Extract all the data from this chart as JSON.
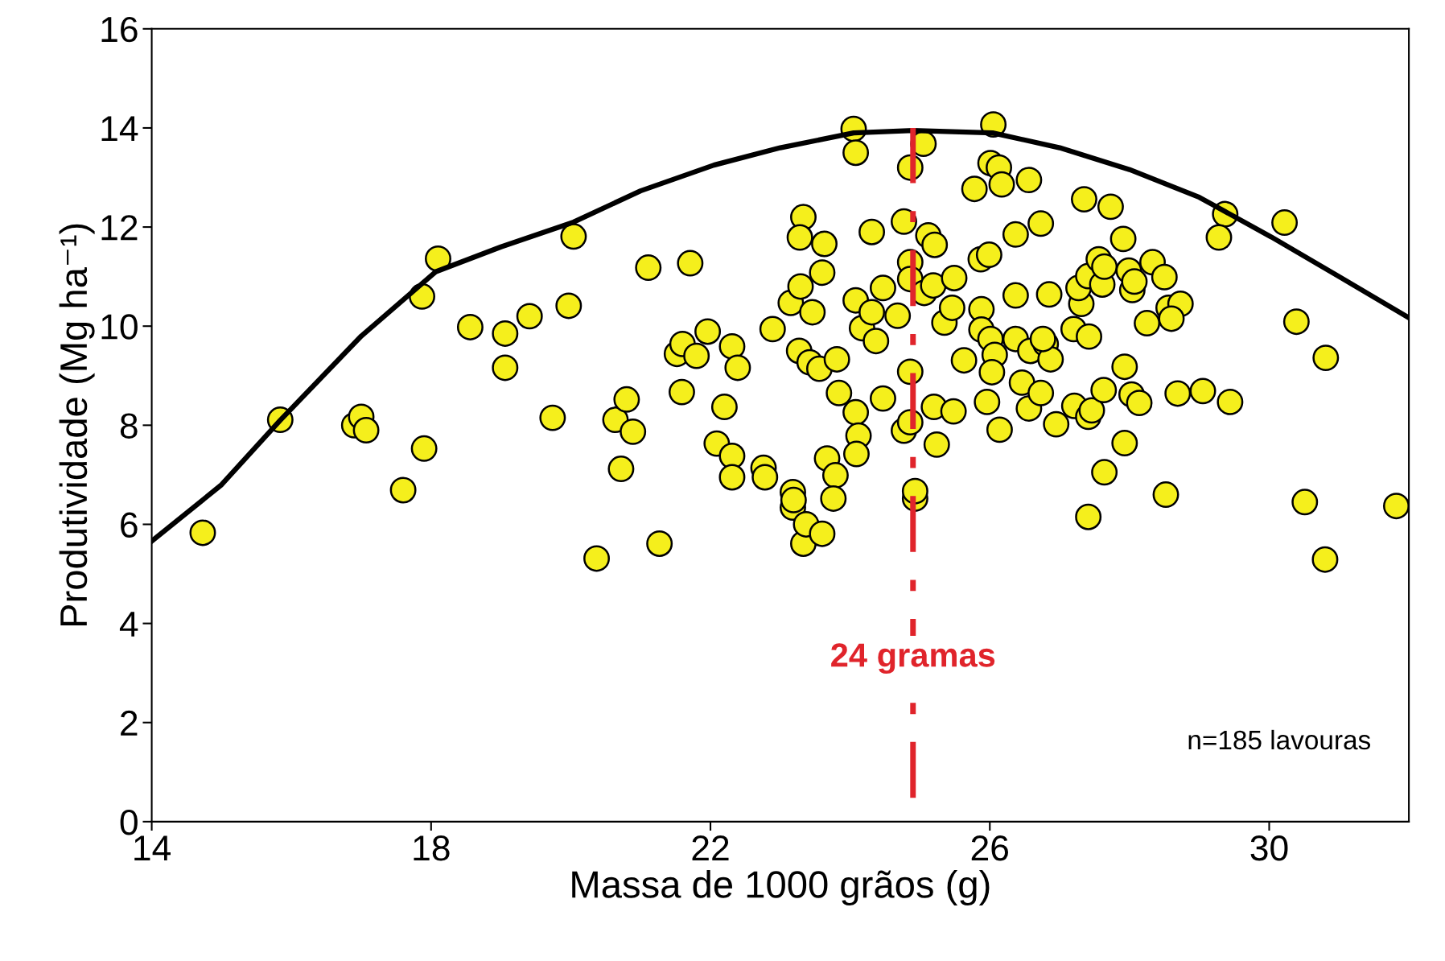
{
  "chart_data": {
    "type": "scatter",
    "xlabel": "Massa de 1000 grãos (g)",
    "ylabel": "Produtividade (Mg ha⁻¹)",
    "xlim": [
      14,
      32
    ],
    "xticks": [
      14,
      18,
      22,
      26,
      30
    ],
    "ylim": [
      0,
      16
    ],
    "yticks": [
      0,
      2,
      4,
      6,
      8,
      10,
      12,
      14,
      16
    ],
    "grid": false,
    "legend": false,
    "marker": "circle",
    "series": [
      {
        "color": "#f5ef1c",
        "x": [
          14.73,
          15.84,
          16.9,
          17.0,
          17.07,
          17.6,
          17.9,
          17.87,
          18.1,
          18.56,
          19.06,
          19.06,
          19.41,
          19.74,
          19.97,
          20.04,
          20.37,
          20.64,
          20.8,
          20.72,
          20.89,
          21.11,
          21.27,
          21.52,
          21.6,
          21.59,
          21.71,
          21.8,
          21.96,
          22.09,
          22.2,
          22.31,
          22.39,
          22.31,
          22.31,
          22.76,
          22.78,
          22.89,
          23.18,
          23.18,
          23.19,
          23.33,
          23.37,
          23.6,
          23.33,
          23.28,
          23.15,
          23.29,
          23.46,
          23.63,
          23.6,
          23.27,
          23.42,
          23.56,
          23.81,
          23.84,
          23.67,
          23.79,
          23.76,
          24.05,
          24.08,
          24.08,
          24.17,
          24.31,
          24.37,
          24.08,
          24.12,
          24.09,
          24.31,
          24.47,
          24.68,
          24.47,
          24.77,
          24.86,
          24.86,
          24.86,
          25.05,
          25.12,
          25.21,
          25.06,
          25.19,
          25.35,
          24.86,
          24.77,
          24.86,
          25.2,
          25.48,
          25.24,
          24.93,
          24.93,
          25.49,
          25.46,
          25.63,
          25.78,
          25.87,
          25.88,
          25.99,
          26.05,
          26.01,
          26.13,
          26.17,
          25.88,
          26.01,
          26.07,
          26.03,
          25.96,
          26.14,
          26.37,
          26.37,
          26.37,
          26.46,
          26.56,
          26.56,
          26.73,
          26.73,
          26.58,
          26.8,
          26.87,
          26.76,
          26.85,
          26.95,
          27.21,
          27.2,
          27.31,
          27.27,
          27.35,
          27.41,
          27.56,
          27.61,
          27.42,
          27.41,
          27.46,
          27.41,
          27.64,
          27.63,
          27.64,
          27.73,
          27.91,
          27.99,
          28.04,
          28.07,
          27.93,
          28.03,
          28.14,
          27.93,
          28.25,
          28.33,
          28.5,
          28.56,
          28.73,
          28.6,
          28.69,
          28.52,
          29.05,
          29.44,
          29.37,
          29.28,
          30.22,
          30.39,
          30.51,
          30.81,
          30.8,
          31.82
        ],
        "values": [
          5.83,
          8.11,
          8.0,
          8.17,
          7.9,
          6.69,
          7.53,
          10.6,
          11.36,
          9.98,
          9.85,
          9.16,
          10.2,
          8.15,
          10.41,
          11.81,
          5.31,
          8.11,
          8.52,
          7.12,
          7.87,
          11.18,
          5.61,
          9.44,
          9.64,
          8.67,
          11.27,
          9.4,
          9.89,
          7.63,
          8.37,
          9.59,
          9.16,
          7.38,
          6.95,
          7.14,
          6.95,
          9.94,
          6.65,
          6.34,
          6.49,
          5.61,
          6.0,
          5.81,
          12.2,
          11.79,
          10.47,
          10.8,
          10.28,
          11.66,
          11.08,
          9.5,
          9.27,
          9.14,
          9.33,
          8.65,
          7.33,
          6.99,
          6.52,
          13.98,
          13.5,
          10.52,
          9.96,
          10.28,
          9.7,
          8.26,
          7.79,
          7.42,
          11.9,
          8.54,
          10.21,
          10.77,
          12.11,
          11.29,
          10.95,
          13.2,
          13.68,
          11.83,
          11.64,
          10.67,
          10.82,
          10.07,
          9.08,
          7.89,
          8.06,
          8.37,
          8.28,
          7.61,
          6.52,
          6.67,
          10.97,
          10.37,
          9.31,
          12.77,
          11.35,
          10.34,
          11.44,
          14.07,
          13.29,
          13.2,
          12.86,
          9.93,
          9.74,
          9.42,
          9.07,
          8.47,
          7.91,
          11.85,
          10.62,
          9.74,
          8.86,
          8.34,
          12.95,
          12.07,
          8.65,
          9.5,
          9.64,
          9.33,
          9.74,
          10.64,
          8.02,
          8.39,
          9.94,
          10.45,
          10.77,
          12.56,
          11.01,
          11.35,
          10.84,
          9.79,
          8.17,
          8.3,
          6.15,
          7.05,
          8.71,
          11.2,
          12.41,
          11.76,
          11.12,
          10.73,
          10.9,
          9.18,
          8.62,
          8.45,
          7.64,
          10.06,
          11.29,
          10.99,
          10.37,
          10.45,
          10.15,
          8.64,
          6.6,
          8.69,
          8.47,
          12.26,
          11.79,
          12.09,
          10.09,
          6.45,
          9.36,
          5.29,
          6.37
        ]
      },
      {
        "type": "line",
        "color": "#000000",
        "marker": "none",
        "line_style": "solid",
        "x": [
          14,
          15,
          15.84,
          17,
          18.07,
          19,
          20.04,
          21,
          22.05,
          23,
          24.05,
          24.9,
          26.04,
          27,
          28,
          29,
          30.03,
          31,
          32
        ],
        "values": [
          5.66,
          6.8,
          8.1,
          9.8,
          11.1,
          11.6,
          12.1,
          12.73,
          13.25,
          13.6,
          13.9,
          13.95,
          13.9,
          13.6,
          13.16,
          12.6,
          11.8,
          11.0,
          10.17
        ]
      }
    ],
    "ref_lines": [
      {
        "axis": "x",
        "value": 24.9,
        "label": "24 gramas",
        "color": "#e0242b",
        "line_style": "dashdot"
      }
    ],
    "annotations": [
      "n=185 lavouras"
    ]
  }
}
